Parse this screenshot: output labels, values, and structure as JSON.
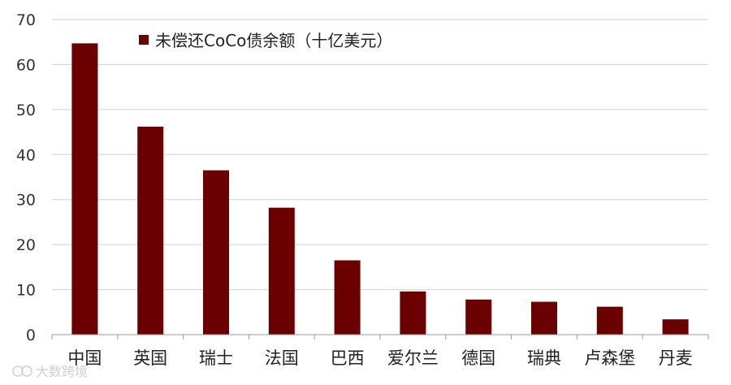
{
  "colors": {
    "bar": "#6b0000",
    "grid": "#d0d0d0",
    "axis": "#999999"
  },
  "watermark": {
    "text": "大数跨境",
    "icon": "logo-icon"
  },
  "chart_data": {
    "type": "bar",
    "categories": [
      "中国",
      "英国",
      "瑞士",
      "法国",
      "巴西",
      "爱尔兰",
      "德国",
      "瑞典",
      "卢森堡",
      "丹麦"
    ],
    "series": [
      {
        "name": "未偿还CoCo债余额（十亿美元）",
        "values": [
          64.7,
          46.2,
          36.5,
          28.2,
          16.5,
          9.6,
          7.8,
          7.3,
          6.2,
          3.4
        ]
      }
    ],
    "yticks": [
      0,
      10,
      20,
      30,
      40,
      50,
      60,
      70
    ],
    "ylim": [
      0,
      70
    ],
    "grid": true,
    "legend_position": "top-left"
  }
}
